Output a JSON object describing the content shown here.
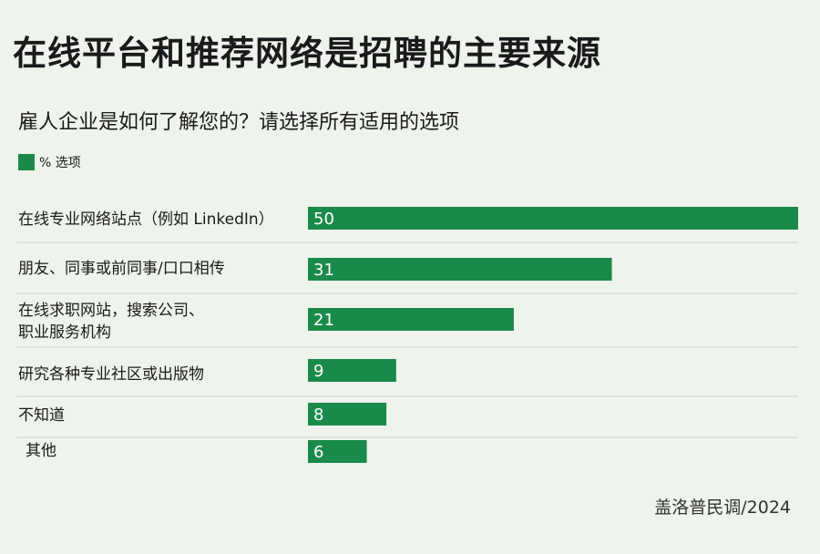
{
  "title": "在线平台和推荐网络是招聘的主要来源",
  "subtitle": "雇人企业是如何了解您的？请选择所有适用的选项",
  "legend": {
    "label": "% 选项",
    "color": "#1a8a4a"
  },
  "source": "盖洛普民调/2024",
  "chart_data": {
    "type": "bar",
    "orientation": "horizontal",
    "categories": [
      [
        "在线专业网络站点（例如 LinkedIn）"
      ],
      [
        "朋友、同事或前同事/口口相传"
      ],
      [
        "在线求职网站，搜索公司、",
        "职业服务机构"
      ],
      [
        "研究各种专业社区或出版物"
      ],
      [
        "不知道"
      ],
      [
        "其他"
      ]
    ],
    "series": [
      {
        "name": "% 选项",
        "values": [
          50,
          31,
          21,
          9,
          8,
          6
        ]
      }
    ],
    "value_labels": [
      "50",
      "31",
      "21",
      "9",
      "8",
      "6"
    ],
    "xlim": [
      0,
      50
    ],
    "bar_color": "#1a8a4a",
    "separator_color": "#c9d3c6"
  }
}
